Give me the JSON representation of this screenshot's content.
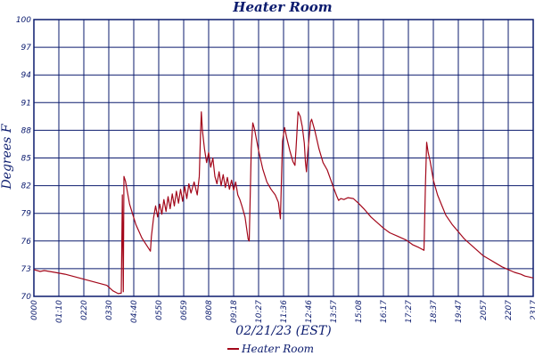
{
  "chart_data": {
    "type": "line",
    "title": "Heater Room",
    "xlabel": "02/21/23 (EST)",
    "ylabel": "Degrees F",
    "ylim": [
      70,
      100
    ],
    "xlim_hours": [
      0,
      24
    ],
    "y_ticks": [
      "70",
      "73",
      "76",
      "79",
      "82",
      "85",
      "88",
      "91",
      "94",
      "97",
      "100"
    ],
    "x_ticks": [
      "0000",
      "01:10",
      "0220",
      "0330",
      "04:40",
      "0550",
      "0659",
      "0808",
      "09:18",
      "10:27",
      "11:36",
      "12:46",
      "13:57",
      "15:08",
      "16:17",
      "17:27",
      "18:37",
      "19:47",
      "2057",
      "2207",
      "2317"
    ],
    "grid": true,
    "legend_position": "bottom-center",
    "line_color": "#a3071a",
    "grid_color": "#0b1b6e",
    "series": [
      {
        "name": "Heater Room",
        "points": [
          [
            0.0,
            72.9
          ],
          [
            0.3,
            72.7
          ],
          [
            0.5,
            72.8
          ],
          [
            1.0,
            72.6
          ],
          [
            1.5,
            72.4
          ],
          [
            2.0,
            72.1
          ],
          [
            2.5,
            71.8
          ],
          [
            3.0,
            71.5
          ],
          [
            3.5,
            71.2
          ],
          [
            3.8,
            70.6
          ],
          [
            4.05,
            70.3
          ],
          [
            4.2,
            70.35
          ],
          [
            4.25,
            81.0
          ],
          [
            4.3,
            70.5
          ],
          [
            4.33,
            83.0
          ],
          [
            4.4,
            82.5
          ],
          [
            4.6,
            80.0
          ],
          [
            4.9,
            77.8
          ],
          [
            5.2,
            76.3
          ],
          [
            5.4,
            75.6
          ],
          [
            5.6,
            74.9
          ],
          [
            5.65,
            76.5
          ],
          [
            5.75,
            78.5
          ],
          [
            5.85,
            79.8
          ],
          [
            5.95,
            78.6
          ],
          [
            6.05,
            80.0
          ],
          [
            6.15,
            78.9
          ],
          [
            6.25,
            80.5
          ],
          [
            6.35,
            79.2
          ],
          [
            6.45,
            80.8
          ],
          [
            6.55,
            79.5
          ],
          [
            6.65,
            81.1
          ],
          [
            6.75,
            79.8
          ],
          [
            6.85,
            81.4
          ],
          [
            6.95,
            80.1
          ],
          [
            7.05,
            81.6
          ],
          [
            7.15,
            80.3
          ],
          [
            7.25,
            81.9
          ],
          [
            7.35,
            80.6
          ],
          [
            7.45,
            82.2
          ],
          [
            7.55,
            81.2
          ],
          [
            7.7,
            82.4
          ],
          [
            7.85,
            81.0
          ],
          [
            7.95,
            83.0
          ],
          [
            8.0,
            87.0
          ],
          [
            8.05,
            90.0
          ],
          [
            8.1,
            88.0
          ],
          [
            8.2,
            86.0
          ],
          [
            8.3,
            84.5
          ],
          [
            8.4,
            85.6
          ],
          [
            8.5,
            84.0
          ],
          [
            8.6,
            85.0
          ],
          [
            8.7,
            83.0
          ],
          [
            8.8,
            82.2
          ],
          [
            8.9,
            83.5
          ],
          [
            9.0,
            82.0
          ],
          [
            9.1,
            83.2
          ],
          [
            9.2,
            81.8
          ],
          [
            9.3,
            82.9
          ],
          [
            9.4,
            81.6
          ],
          [
            9.5,
            82.6
          ],
          [
            9.6,
            81.5
          ],
          [
            9.7,
            82.4
          ],
          [
            9.8,
            81.0
          ],
          [
            9.9,
            80.5
          ],
          [
            10.0,
            79.8
          ],
          [
            10.15,
            78.6
          ],
          [
            10.3,
            76.2
          ],
          [
            10.35,
            76.0
          ],
          [
            10.45,
            86.0
          ],
          [
            10.52,
            88.8
          ],
          [
            10.6,
            88.2
          ],
          [
            10.8,
            85.8
          ],
          [
            11.0,
            83.8
          ],
          [
            11.2,
            82.4
          ],
          [
            11.4,
            81.6
          ],
          [
            11.6,
            81.0
          ],
          [
            11.75,
            80.2
          ],
          [
            11.85,
            78.4
          ],
          [
            11.95,
            86.8
          ],
          [
            12.05,
            88.3
          ],
          [
            12.15,
            87.2
          ],
          [
            12.3,
            85.8
          ],
          [
            12.45,
            84.6
          ],
          [
            12.55,
            84.2
          ],
          [
            12.6,
            86.0
          ],
          [
            12.7,
            90.0
          ],
          [
            12.8,
            89.5
          ],
          [
            12.9,
            88.4
          ],
          [
            13.0,
            86.6
          ],
          [
            13.05,
            84.6
          ],
          [
            13.1,
            83.5
          ],
          [
            13.15,
            85.2
          ],
          [
            13.3,
            88.9
          ],
          [
            13.35,
            89.2
          ],
          [
            13.5,
            88.0
          ],
          [
            13.7,
            86.0
          ],
          [
            13.9,
            84.5
          ],
          [
            14.1,
            83.7
          ],
          [
            14.4,
            81.8
          ],
          [
            14.55,
            80.9
          ],
          [
            14.65,
            80.4
          ],
          [
            14.75,
            80.6
          ],
          [
            14.9,
            80.5
          ],
          [
            15.1,
            80.7
          ],
          [
            15.35,
            80.6
          ],
          [
            15.6,
            80.1
          ],
          [
            15.9,
            79.4
          ],
          [
            16.2,
            78.6
          ],
          [
            16.5,
            78.0
          ],
          [
            16.8,
            77.4
          ],
          [
            17.1,
            76.9
          ],
          [
            17.5,
            76.5
          ],
          [
            17.9,
            76.1
          ],
          [
            18.2,
            75.6
          ],
          [
            18.5,
            75.3
          ],
          [
            18.75,
            75.0
          ],
          [
            18.82,
            82.0
          ],
          [
            18.88,
            86.7
          ],
          [
            18.95,
            85.6
          ],
          [
            19.05,
            84.6
          ],
          [
            19.2,
            82.6
          ],
          [
            19.4,
            81.0
          ],
          [
            19.6,
            79.9
          ],
          [
            19.8,
            78.8
          ],
          [
            20.1,
            77.8
          ],
          [
            20.4,
            77.0
          ],
          [
            20.7,
            76.2
          ],
          [
            21.0,
            75.6
          ],
          [
            21.3,
            75.0
          ],
          [
            21.6,
            74.4
          ],
          [
            21.9,
            74.0
          ],
          [
            22.2,
            73.6
          ],
          [
            22.5,
            73.2
          ],
          [
            22.8,
            72.9
          ],
          [
            23.1,
            72.6
          ],
          [
            23.4,
            72.4
          ],
          [
            23.6,
            72.2
          ],
          [
            23.8,
            72.1
          ],
          [
            24.0,
            72.0
          ]
        ]
      }
    ]
  }
}
